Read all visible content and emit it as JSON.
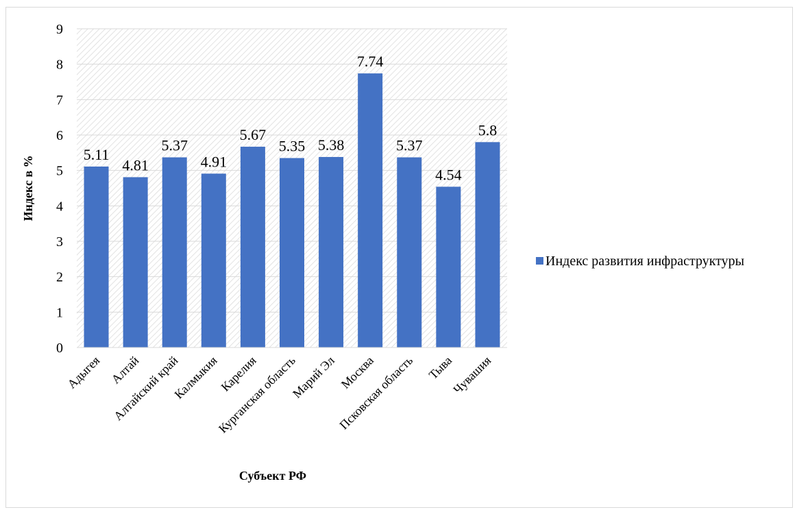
{
  "chart_data": {
    "type": "bar",
    "categories": [
      "Адыгея",
      "Алтай",
      "Алтайский край",
      "Калмыкия",
      "Карелия",
      "Курганская область",
      "Марий Эл",
      "Москва",
      "Псковская область",
      "Тыва",
      "Чувашия"
    ],
    "series": [
      {
        "name": "Индекс развития инфраструктуры",
        "values": [
          5.11,
          4.81,
          5.37,
          4.91,
          5.67,
          5.35,
          5.38,
          7.74,
          5.37,
          4.54,
          5.8
        ],
        "color": "#4472C4"
      }
    ],
    "data_labels": [
      "5.11",
      "4.81",
      "5.37",
      "4.91",
      "5.67",
      "5.35",
      "5.38",
      "7.74",
      "5.37",
      "4.54",
      "5.8"
    ],
    "xlabel": "Субъект РФ",
    "ylabel": "Индекс в %",
    "ylim": [
      0,
      9
    ],
    "yticks": [
      "0",
      "1",
      "2",
      "3",
      "4",
      "5",
      "6",
      "7",
      "8",
      "9"
    ],
    "grid": true,
    "plot_background": "hatched",
    "legend_position": "right"
  }
}
